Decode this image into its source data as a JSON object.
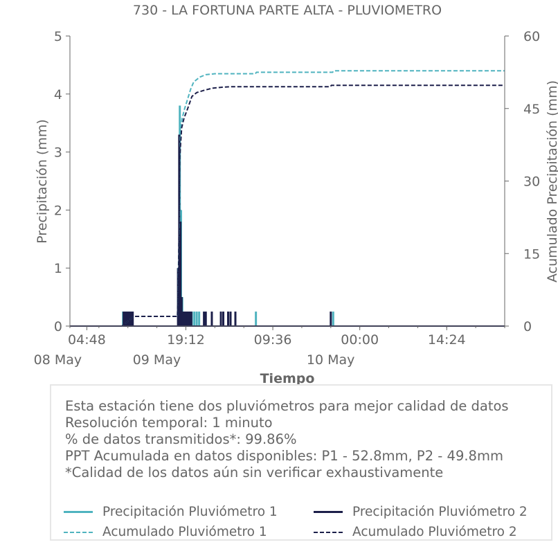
{
  "chart_data": {
    "type": "line",
    "title": "730 - LA FORTUNA PARTE ALTA - PLUVIOMETRO",
    "xlabel": "Tiempo",
    "ylabel": "Precipitación (mm)",
    "y2label": "Acumulado Precipitación (mm)",
    "ylim": [
      0,
      5
    ],
    "y2lim": [
      0,
      60
    ],
    "yticks": [
      0,
      1,
      2,
      3,
      4,
      5
    ],
    "y2ticks": [
      0,
      15,
      30,
      45,
      60
    ],
    "xlim_hours": [
      0,
      72
    ],
    "xticks": [
      {
        "hour": 2.8,
        "label": "04:48",
        "date": "08 May"
      },
      {
        "hour": 19.2,
        "label": "19:12",
        "date": "09 May"
      },
      {
        "hour": 33.6,
        "label": "09:36",
        "date": ""
      },
      {
        "hour": 48.0,
        "label": "00:00",
        "date": "10 May"
      },
      {
        "hour": 62.4,
        "label": "14:24",
        "date": ""
      }
    ],
    "grid": false,
    "series": [
      {
        "name": "Precipitación Pluviómetro 1",
        "color": "#4fb3bf",
        "style": "solid",
        "axis": "left",
        "x": [
          8.8,
          9.1,
          9.4,
          9.7,
          10.0,
          10.3,
          18.0,
          18.2,
          18.4,
          18.6,
          18.8,
          19.0,
          19.2,
          19.4,
          19.6,
          19.8,
          20.0,
          20.2,
          20.6,
          21.0,
          21.4,
          30.8,
          43.6
        ],
        "y": [
          0.25,
          0.25,
          0.25,
          0.25,
          0.25,
          0.25,
          1.0,
          3.8,
          2.0,
          0.5,
          0.25,
          0.25,
          0.25,
          0.25,
          0.25,
          0.25,
          0.25,
          0.25,
          0.25,
          0.25,
          0.25,
          0.25,
          0.25
        ]
      },
      {
        "name": "Precipitación Pluviómetro 2",
        "color": "#1c1f4a",
        "style": "solid",
        "axis": "left",
        "x": [
          8.9,
          9.2,
          9.5,
          9.8,
          10.1,
          10.4,
          17.9,
          18.1,
          18.3,
          18.5,
          18.7,
          18.9,
          19.1,
          19.3,
          19.5,
          19.7,
          19.9,
          20.1,
          22.2,
          22.5,
          23.5,
          25.0,
          25.4,
          26.2,
          26.6,
          27.4,
          43.2
        ],
        "y": [
          0.25,
          0.25,
          0.25,
          0.25,
          0.25,
          0.25,
          1.0,
          3.3,
          1.8,
          0.5,
          0.25,
          0.25,
          0.25,
          0.25,
          0.25,
          0.25,
          0.25,
          0.25,
          0.25,
          0.25,
          0.25,
          0.25,
          0.25,
          0.25,
          0.25,
          0.25,
          0.25
        ]
      },
      {
        "name": "Acumulado Pluviómetro 1",
        "color": "#4fb3bf",
        "style": "dashed",
        "axis": "right",
        "x": [
          0,
          8.6,
          10.6,
          17.8,
          18.1,
          18.3,
          18.6,
          19.0,
          19.5,
          20.0,
          20.5,
          21.0,
          21.5,
          22.5,
          24.0,
          30.7,
          30.9,
          43.5,
          43.7,
          72
        ],
        "y": [
          0,
          0,
          2.0,
          2.0,
          20.0,
          40.0,
          43.0,
          45.0,
          47.0,
          49.0,
          50.5,
          51.0,
          51.5,
          52.0,
          52.2,
          52.2,
          52.5,
          52.5,
          52.8,
          52.8
        ]
      },
      {
        "name": "Acumulado Pluviómetro 2",
        "color": "#1c1f4a",
        "style": "dashed",
        "axis": "right",
        "x": [
          0,
          8.6,
          10.6,
          17.8,
          18.0,
          18.2,
          18.5,
          18.9,
          19.5,
          20.2,
          21.0,
          22.3,
          23.6,
          25.2,
          26.4,
          27.5,
          43.1,
          43.3,
          72
        ],
        "y": [
          0,
          0,
          2.0,
          2.0,
          12.0,
          35.0,
          41.0,
          43.0,
          45.0,
          47.5,
          48.3,
          48.8,
          49.2,
          49.4,
          49.5,
          49.5,
          49.5,
          49.8,
          49.8
        ]
      }
    ]
  },
  "info": {
    "lines": [
      "Esta estación tiene dos pluviómetros para mejor calidad de datos",
      "Resolución temporal: 1 minuto",
      "% de datos transmitidos*: 99.86%",
      "PPT Acumulada en datos disponibles: P1 - 52.8mm, P2 - 49.8mm",
      "*Calidad de los datos aún sin verificar exhaustivamente"
    ]
  },
  "legend": {
    "items": [
      {
        "label": "Precipitación Pluviómetro 1",
        "color": "#4fb3bf",
        "style": "solid"
      },
      {
        "label": "Precipitación Pluviómetro 2",
        "color": "#1c1f4a",
        "style": "solid"
      },
      {
        "label": "Acumulado Pluviómetro 1",
        "color": "#4fb3bf",
        "style": "dashed"
      },
      {
        "label": "Acumulado Pluviómetro 2",
        "color": "#1c1f4a",
        "style": "dashed"
      }
    ]
  }
}
